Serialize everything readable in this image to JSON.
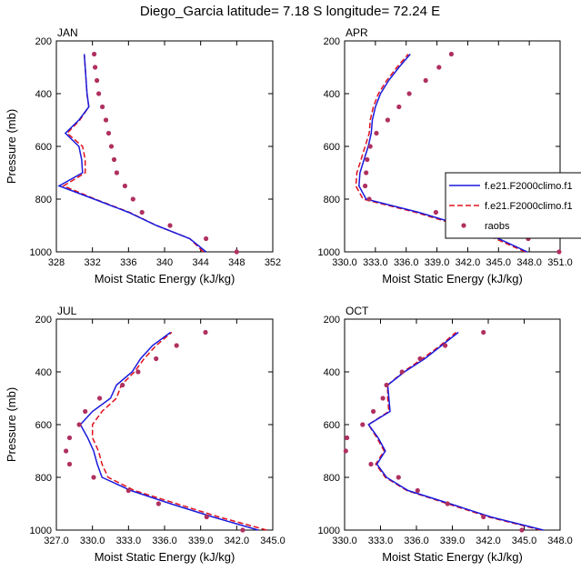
{
  "figure_title": "Diego_Garcia  latitude= 7.18 S longitude= 72.24 E",
  "colors": {
    "series1": "#1a1adc",
    "series2": "#e0121e",
    "raobs": "#b03060"
  },
  "legend": {
    "entries": [
      {
        "label": "f.e21.F2000climo.f1",
        "style": "solid",
        "color": "#1a1adc"
      },
      {
        "label": "f.e21.F2000climo.f1",
        "style": "dashed",
        "color": "#e0121e"
      },
      {
        "label": "raobs",
        "style": "dots",
        "color": "#b03060"
      }
    ]
  },
  "chart_data": [
    {
      "type": "line",
      "title": "JAN",
      "xlabel": "Moist Static Energy (kJ/kg)",
      "ylabel": "Pressure (mb)",
      "xlim": [
        328,
        352
      ],
      "ylim": [
        1000,
        200
      ],
      "xticks": [
        "328",
        "332",
        "336",
        "340",
        "344",
        "348",
        "352"
      ],
      "yticks": [
        "200",
        "400",
        "600",
        "800",
        "1000"
      ],
      "pressure": [
        1000,
        950,
        900,
        850,
        800,
        750,
        700,
        650,
        600,
        550,
        500,
        450,
        400,
        350,
        300,
        250
      ],
      "series": [
        {
          "name": "f.e21.F2000climo.f1 (solid)",
          "values": [
            344.6,
            342.8,
            339.1,
            336.0,
            332.2,
            328.3,
            330.9,
            330.8,
            330.5,
            329.0,
            330.5,
            331.6,
            331.4,
            331.3,
            331.2,
            331.1
          ]
        },
        {
          "name": "f.e21.F2000climo.f1 (dashed)",
          "values": [
            344.3,
            342.8,
            339.1,
            336.1,
            332.3,
            328.8,
            331.2,
            331.2,
            330.9,
            329.2,
            330.6,
            331.6,
            331.4,
            331.3,
            331.2,
            331.1
          ]
        },
        {
          "name": "raobs",
          "values": [
            348.0,
            344.6,
            340.6,
            337.5,
            336.5,
            335.6,
            334.7,
            334.4,
            334.1,
            333.8,
            333.5,
            333.1,
            332.7,
            332.5,
            332.3,
            332.2
          ]
        }
      ]
    },
    {
      "type": "line",
      "title": "APR",
      "xlabel": "Moist Static Energy (kJ/kg)",
      "ylabel": "",
      "xlim": [
        330,
        351
      ],
      "ylim": [
        1000,
        200
      ],
      "xticks": [
        "330.0",
        "333.0",
        "336.0",
        "339.0",
        "342.0",
        "345.0",
        "348.0",
        "351.0"
      ],
      "yticks": [
        "200",
        "400",
        "600",
        "800",
        "1000"
      ],
      "pressure": [
        1000,
        950,
        900,
        850,
        800,
        750,
        700,
        650,
        600,
        550,
        500,
        450,
        400,
        350,
        300,
        250
      ],
      "series": [
        {
          "name": "f.e21.F2000climo.f1 (solid)",
          "values": [
            347.8,
            345.0,
            341.5,
            337.2,
            332.1,
            331.4,
            331.5,
            331.9,
            332.3,
            332.6,
            332.7,
            333.0,
            333.5,
            334.3,
            335.3,
            336.4
          ]
        },
        {
          "name": "f.e21.F2000climo.f1 (dashed)",
          "values": [
            347.6,
            344.7,
            341.2,
            336.9,
            331.8,
            331.1,
            331.2,
            331.6,
            332.0,
            332.4,
            332.5,
            332.8,
            333.3,
            334.1,
            335.1,
            336.2
          ]
        },
        {
          "name": "raobs",
          "values": [
            350.9,
            347.9,
            342.6,
            338.9,
            332.4,
            332.0,
            332.1,
            332.2,
            332.5,
            333.1,
            334.2,
            335.3,
            336.3,
            337.9,
            339.2,
            340.4
          ]
        }
      ]
    },
    {
      "type": "line",
      "title": "JUL",
      "xlabel": "Moist Static Energy (kJ/kg)",
      "ylabel": "Pressure (mb)",
      "xlim": [
        327,
        345
      ],
      "ylim": [
        1000,
        200
      ],
      "xticks": [
        "327.0",
        "330.0",
        "333.0",
        "336.0",
        "339.0",
        "342.0",
        "345.0"
      ],
      "yticks": [
        "200",
        "400",
        "600",
        "800",
        "1000"
      ],
      "pressure": [
        1000,
        950,
        900,
        850,
        800,
        750,
        700,
        650,
        600,
        550,
        500,
        450,
        400,
        350,
        300,
        250
      ],
      "series": [
        {
          "name": "f.e21.F2000climo.f1 (solid)",
          "values": [
            343.8,
            340.0,
            336.5,
            333.2,
            330.8,
            330.4,
            330.1,
            329.6,
            329.0,
            330.0,
            331.5,
            332.0,
            333.3,
            334.0,
            335.0,
            336.5
          ]
        },
        {
          "name": "f.e21.F2000climo.f1 (dashed)",
          "values": [
            344.5,
            340.5,
            337.0,
            333.5,
            331.3,
            330.8,
            330.5,
            330.0,
            330.0,
            330.8,
            332.0,
            332.4,
            333.5,
            334.3,
            335.3,
            336.6
          ]
        },
        {
          "name": "raobs",
          "values": [
            342.5,
            339.5,
            335.5,
            333.0,
            330.1,
            328.1,
            327.8,
            328.1,
            328.9,
            329.4,
            330.6,
            332.5,
            333.8,
            335.3,
            337.0,
            339.4
          ]
        }
      ]
    },
    {
      "type": "line",
      "title": "OCT",
      "xlabel": "Moist Static Energy (kJ/kg)",
      "ylabel": "",
      "xlim": [
        330,
        348
      ],
      "ylim": [
        1000,
        200
      ],
      "xticks": [
        "330.0",
        "333.0",
        "336.0",
        "339.0",
        "342.0",
        "345.0",
        "348.0"
      ],
      "yticks": [
        "200",
        "400",
        "600",
        "800",
        "1000"
      ],
      "pressure": [
        1000,
        950,
        900,
        850,
        800,
        750,
        700,
        650,
        600,
        550,
        500,
        450,
        400,
        350,
        300,
        250
      ],
      "series": [
        {
          "name": "f.e21.F2000climo.f1 (solid)",
          "values": [
            346.6,
            342.2,
            338.8,
            335.3,
            333.5,
            332.7,
            333.4,
            332.8,
            332.0,
            333.8,
            333.7,
            333.6,
            335.0,
            336.7,
            338.1,
            339.5
          ]
        },
        {
          "name": "f.e21.F2000climo.f1 (dashed)",
          "values": [
            346.4,
            342.0,
            338.6,
            335.2,
            333.4,
            332.6,
            333.3,
            332.7,
            332.0,
            333.7,
            333.6,
            333.6,
            334.9,
            336.5,
            338.0,
            339.3
          ]
        },
        {
          "name": "raobs",
          "values": [
            344.8,
            341.6,
            338.6,
            336.1,
            334.5,
            332.2,
            330.1,
            330.2,
            331.5,
            332.4,
            333.2,
            333.5,
            334.8,
            336.3,
            338.4,
            341.6
          ]
        }
      ]
    }
  ]
}
